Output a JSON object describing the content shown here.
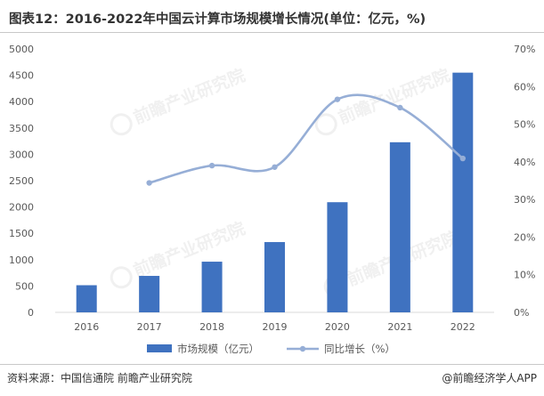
{
  "header": {
    "title": "图表12：2016-2022年中国云计算市场规模增长情况(单位：亿元，%)"
  },
  "footer": {
    "source": "资料来源：中国信通院 前瞻产业研究院",
    "brand": "@前瞻经济学人APP"
  },
  "watermark": {
    "text": "前瞻产业研究院"
  },
  "colors": {
    "bar": "#3f72c0",
    "line": "#96aed6",
    "axis_text": "#595959",
    "grid": "#d9d9d9"
  },
  "chart_data": {
    "type": "bar",
    "title": "图表12：2016-2022年中国云计算市场规模增长情况(单位：亿元，%)",
    "categories": [
      "2016",
      "2017",
      "2018",
      "2019",
      "2020",
      "2021",
      "2022"
    ],
    "series": [
      {
        "name": "市场规模（亿元）",
        "type": "bar",
        "axis": "left",
        "values": [
          515,
          692,
          962,
          1334,
          2091,
          3229,
          4550
        ]
      },
      {
        "name": "同比增长（%）",
        "type": "line",
        "axis": "right",
        "smooth": true,
        "values": [
          null,
          34.4,
          39.0,
          38.6,
          56.6,
          54.4,
          40.9
        ]
      }
    ],
    "y_left": {
      "ylim": [
        0,
        5000
      ],
      "ticks": [
        "0",
        "500",
        "1000",
        "1500",
        "2000",
        "2500",
        "3000",
        "3500",
        "4000",
        "4500",
        "5000"
      ]
    },
    "y_right": {
      "ylim": [
        0,
        70
      ],
      "ticks": [
        "0%",
        "10%",
        "20%",
        "30%",
        "40%",
        "50%",
        "60%",
        "70%"
      ]
    },
    "grid": false,
    "legend_position": "bottom-center"
  }
}
